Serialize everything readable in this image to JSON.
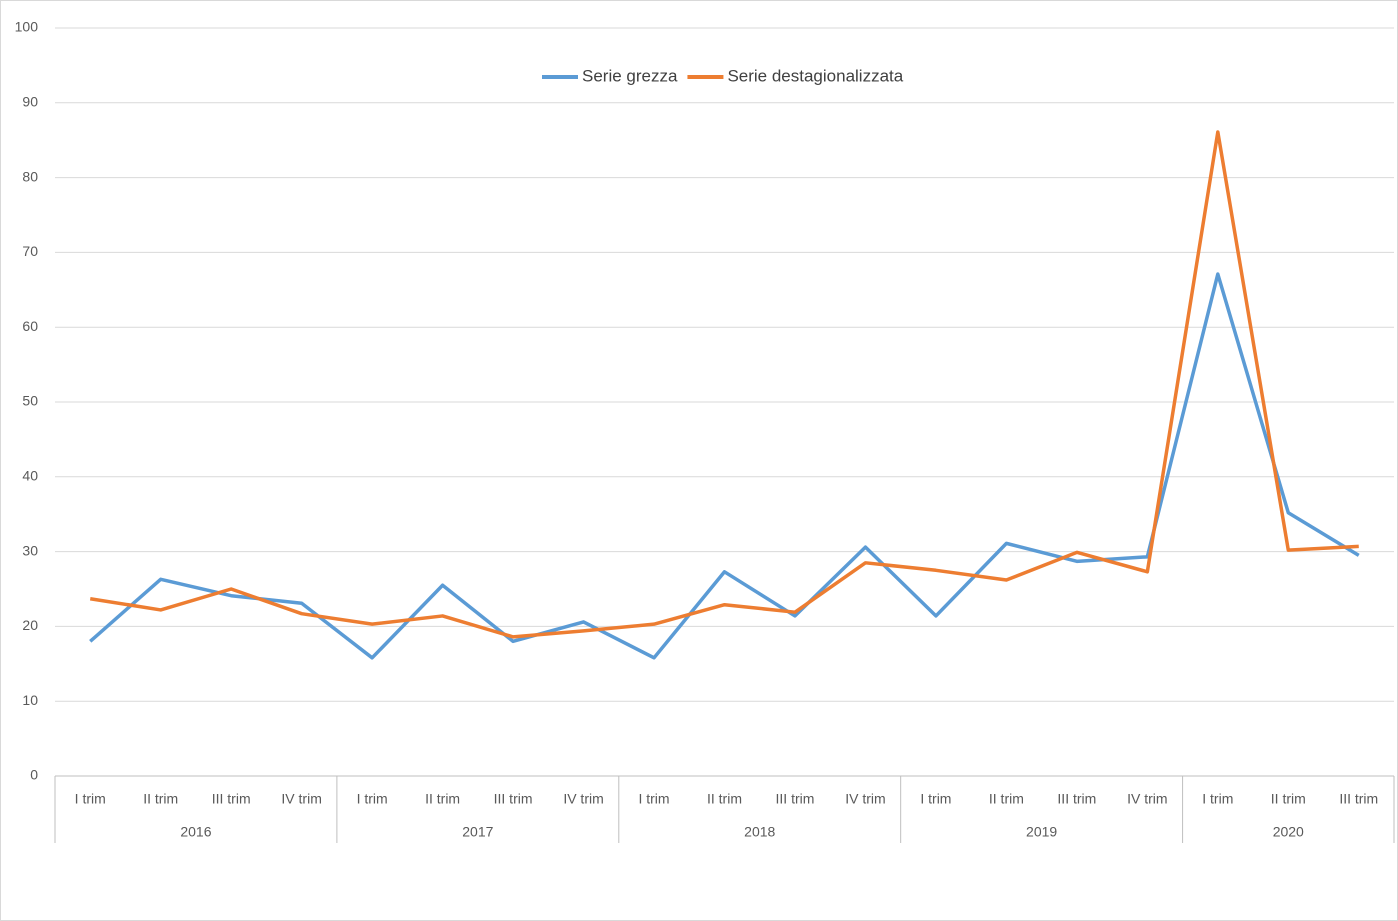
{
  "chart_data": {
    "type": "line",
    "categories": [
      "I trim",
      "II trim",
      "III trim",
      "IV trim",
      "I trim",
      "II trim",
      "III trim",
      "IV trim",
      "I trim",
      "II trim",
      "III trim",
      "IV trim",
      "I trim",
      "II trim",
      "III trim",
      "IV trim",
      "I trim",
      "II trim",
      "III trim"
    ],
    "x_groups": [
      {
        "label": "2016",
        "span": 4
      },
      {
        "label": "2017",
        "span": 4
      },
      {
        "label": "2018",
        "span": 4
      },
      {
        "label": "2019",
        "span": 4
      },
      {
        "label": "2020",
        "span": 3
      }
    ],
    "series": [
      {
        "name": "Serie grezza",
        "color": "#5b9bd5",
        "values": [
          18.0,
          26.3,
          24.1,
          23.1,
          15.8,
          25.5,
          18.0,
          20.6,
          15.8,
          27.3,
          21.4,
          30.6,
          21.4,
          31.1,
          28.7,
          29.3,
          67.1,
          35.2,
          29.5
        ]
      },
      {
        "name": "Serie destagionalizzata",
        "color": "#ed7d31",
        "values": [
          23.7,
          22.2,
          25.0,
          21.7,
          20.3,
          21.4,
          18.6,
          19.4,
          20.3,
          22.9,
          21.9,
          28.5,
          27.5,
          26.2,
          29.9,
          27.3,
          86.1,
          30.2,
          30.7
        ]
      }
    ],
    "ylim": [
      0,
      100
    ],
    "yticks": [
      0,
      10,
      20,
      30,
      40,
      50,
      60,
      70,
      80,
      90,
      100
    ],
    "grid": true,
    "legend": "top"
  }
}
